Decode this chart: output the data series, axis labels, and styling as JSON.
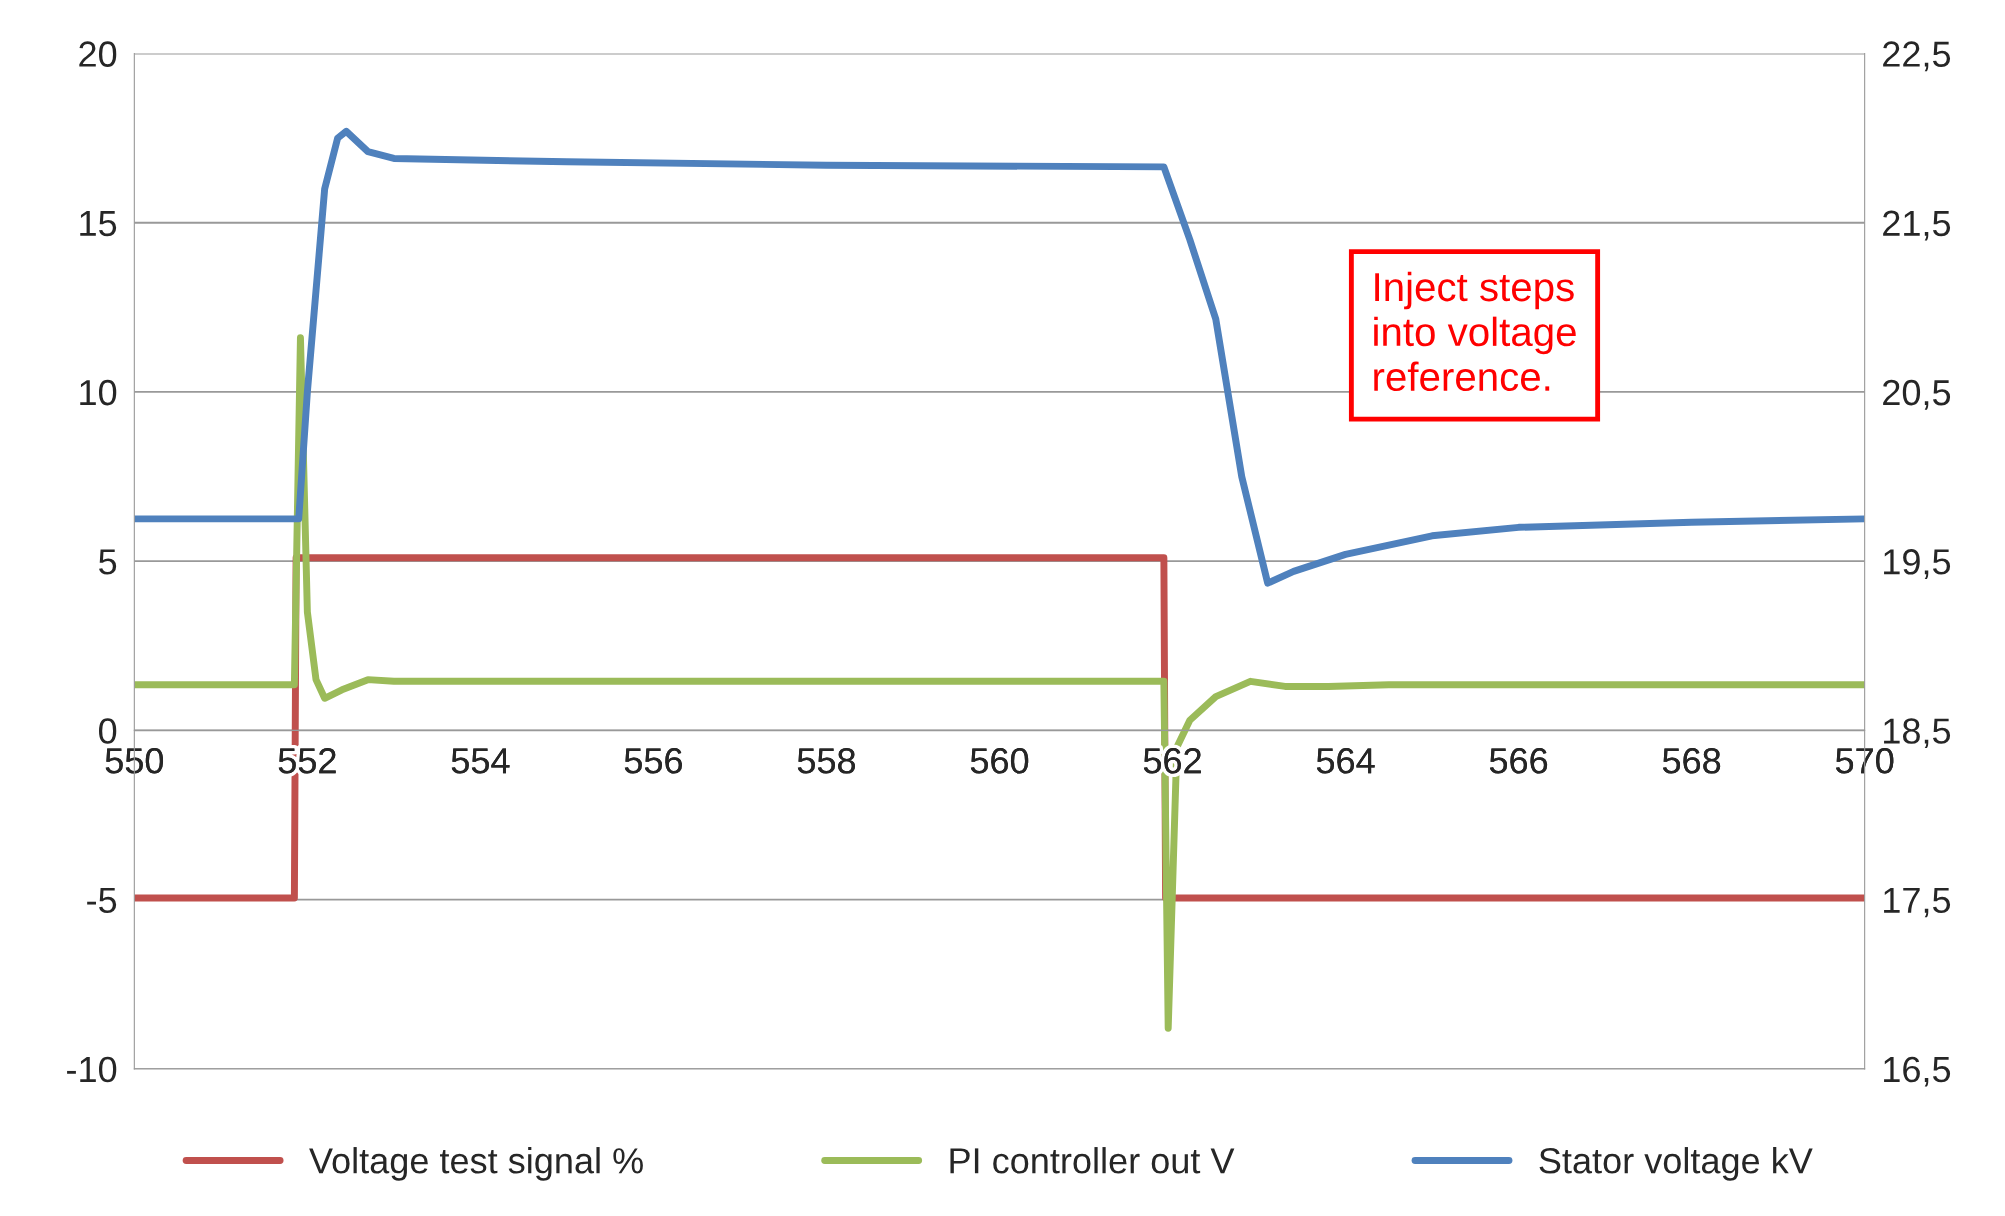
{
  "chart_data": {
    "type": "line",
    "xlim": [
      550,
      570
    ],
    "xticks": [
      550,
      552,
      554,
      556,
      558,
      560,
      562,
      564,
      566,
      568,
      570
    ],
    "ylim": [
      -10,
      20
    ],
    "yticks": [
      -10,
      -5,
      0,
      5,
      10,
      15,
      20
    ],
    "y2lim": [
      16.5,
      22.5
    ],
    "y2ticks": [
      {
        "value": 16.5,
        "label": "16,5"
      },
      {
        "value": 17.5,
        "label": "17,5"
      },
      {
        "value": 18.5,
        "label": "18,5"
      },
      {
        "value": 19.5,
        "label": "19,5"
      },
      {
        "value": 20.5,
        "label": "20,5"
      },
      {
        "value": 21.5,
        "label": "21,5"
      },
      {
        "value": 22.5,
        "label": "22,5"
      }
    ],
    "grid": "y",
    "legend": "bottom",
    "line_style": "solid",
    "marker": "none",
    "annotations": [
      "Inject steps into voltage reference."
    ],
    "series": [
      {
        "name": "Voltage test signal %",
        "color": "#c0504d",
        "x": [
          550,
          551.85,
          551.87,
          561.9,
          561.92,
          570
        ],
        "values": [
          -4.95,
          -4.95,
          5.1,
          5.1,
          -4.95,
          -4.95
        ]
      },
      {
        "name": "PI controller out V",
        "color": "#9bbb59",
        "x": [
          550,
          551.85,
          551.92,
          552.0,
          552.1,
          552.2,
          552.4,
          552.7,
          553,
          561.9,
          561.95,
          562.05,
          562.2,
          562.5,
          562.9,
          563.3,
          563.8,
          564.5,
          570
        ],
        "values": [
          1.35,
          1.35,
          11.6,
          3.5,
          1.5,
          0.95,
          1.2,
          1.5,
          1.45,
          1.45,
          -8.8,
          -0.5,
          0.3,
          1.0,
          1.45,
          1.3,
          1.3,
          1.35,
          1.35
        ]
      },
      {
        "name": "Stator voltage kV",
        "color": "#4f81bd",
        "axis": "y2",
        "x": [
          550,
          551.9,
          552.0,
          552.2,
          552.35,
          552.45,
          552.7,
          553,
          555,
          558,
          561.9,
          562.2,
          562.5,
          562.8,
          563.1,
          563.4,
          564,
          565,
          566,
          568,
          570
        ],
        "values": [
          19.75,
          19.75,
          20.5,
          21.7,
          22.0,
          22.04,
          21.92,
          21.88,
          21.86,
          21.84,
          21.83,
          21.4,
          20.93,
          20.0,
          19.37,
          19.44,
          19.54,
          19.65,
          19.7,
          19.73,
          19.75
        ]
      }
    ]
  }
}
